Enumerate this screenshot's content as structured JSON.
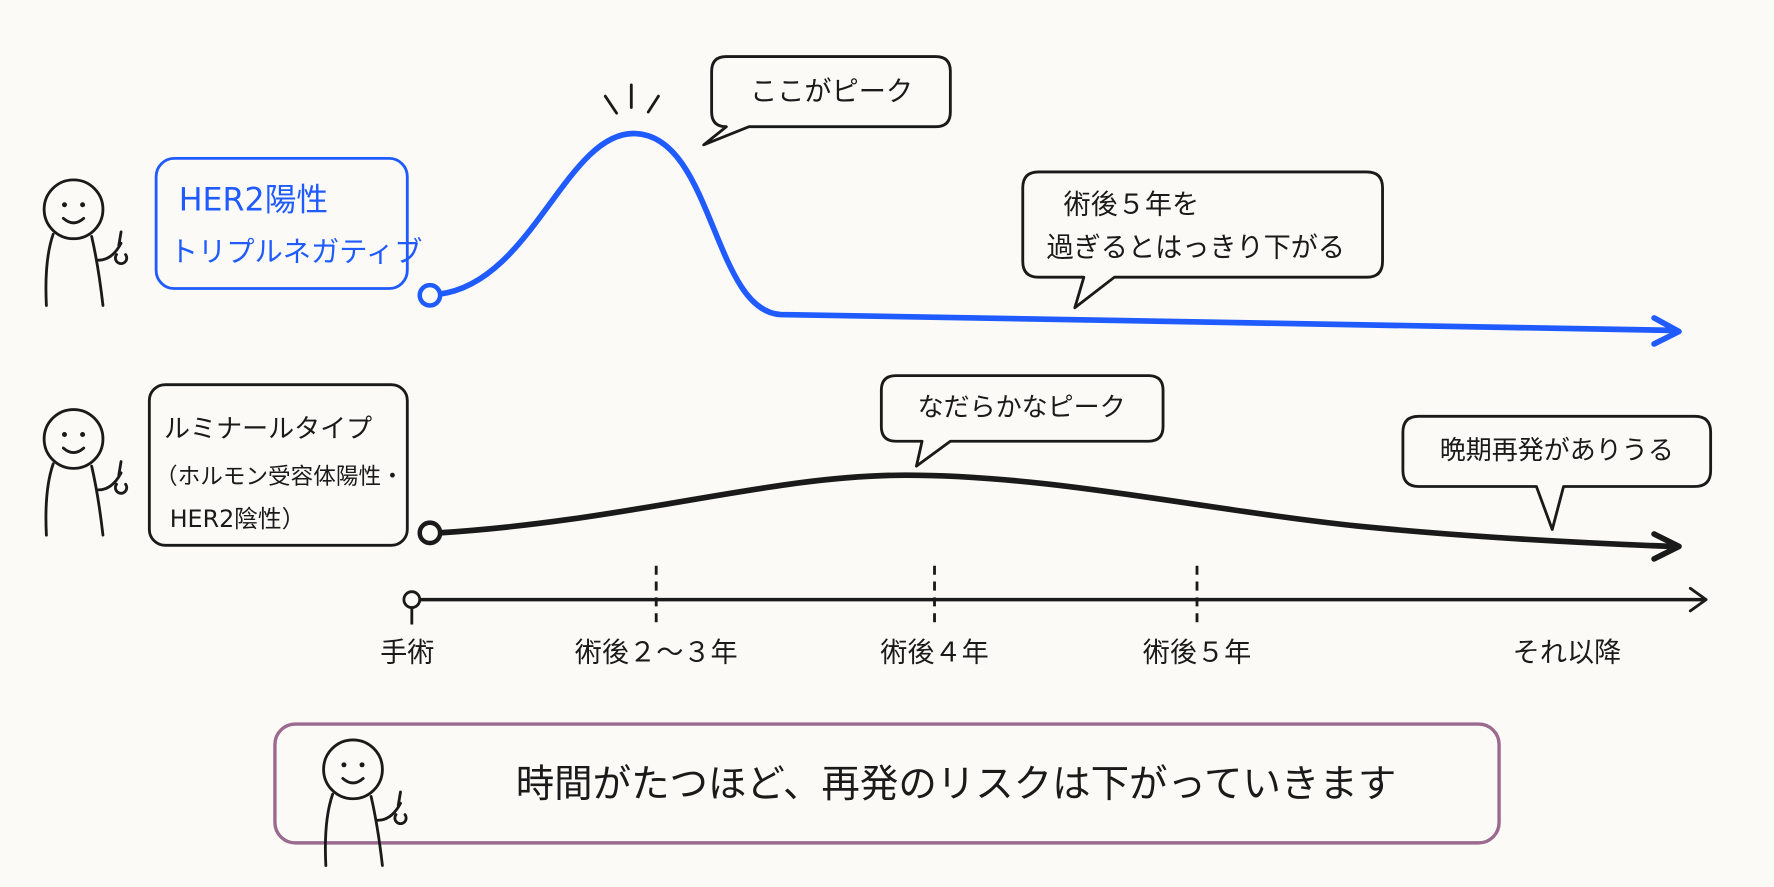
{
  "rows": [
    {
      "label": [
        "HER2陽性",
        "トリプルネガティブ"
      ],
      "callouts": [
        [
          "ここがピーク"
        ],
        [
          "術後５年を",
          "過ぎるとはっきり下がる"
        ]
      ]
    },
    {
      "label": [
        "ルミナールタイプ",
        "（ホルモン受容体陽性・",
        "HER2陰性）"
      ],
      "callouts": [
        [
          "なだらかなピーク"
        ],
        [
          "晩期再発がありうる"
        ]
      ]
    }
  ],
  "timeline": [
    "手術",
    "術後２〜３年",
    "術後４年",
    "術後５年",
    "それ以降"
  ],
  "footer": "時間がたつほど、再発のリスクは下がっていきます"
}
